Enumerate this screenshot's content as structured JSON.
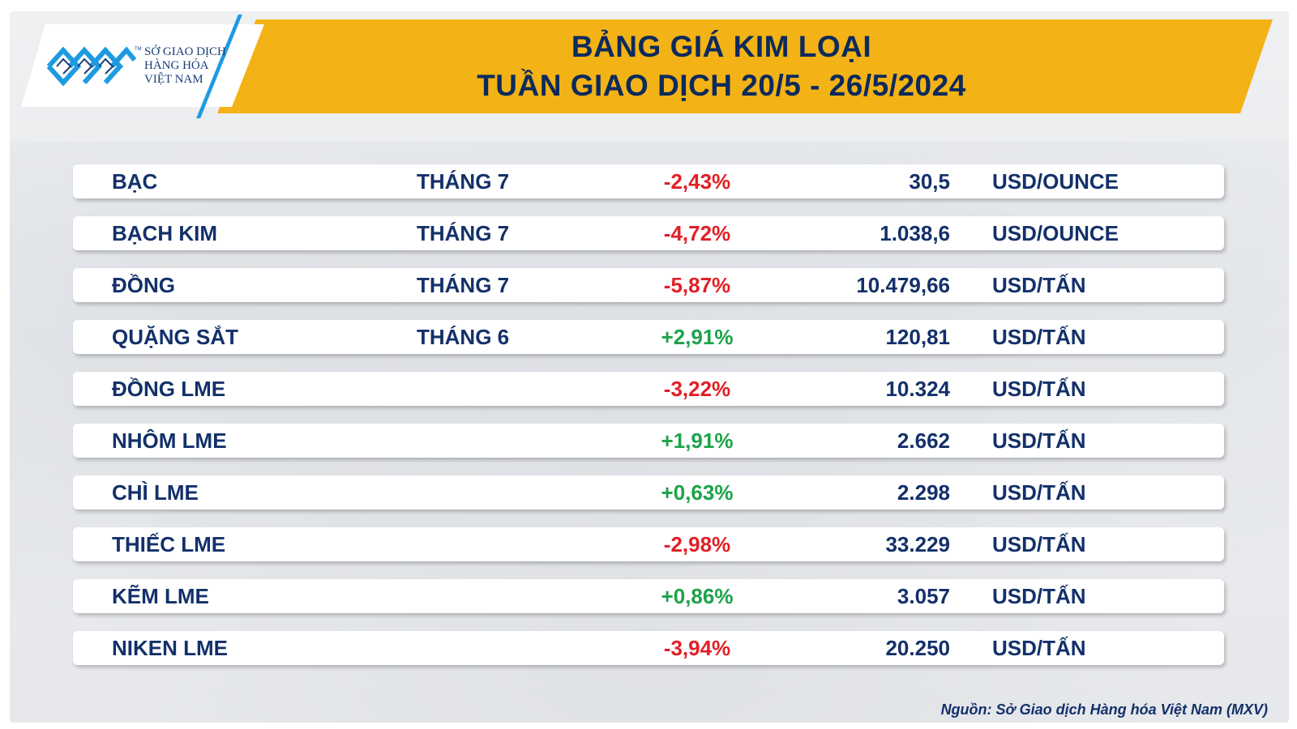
{
  "header": {
    "title_line1": "BẢNG GIÁ KIM LOẠI",
    "title_line2": "TUẦN GIAO DỊCH 20/5 - 26/5/2024"
  },
  "logo": {
    "line1": "SỞ GIAO DỊCH",
    "line2": "HÀNG HÓA",
    "line3": "VIỆT NAM",
    "tm": "TM",
    "icon": "mxv-logo-icon"
  },
  "colors": {
    "banner": "#f3b215",
    "navy_text": "#13306a",
    "negative": "#e21f26",
    "positive": "#1ca34a",
    "logo_blue": "#1e9be0"
  },
  "rows": [
    {
      "name": "BẠC",
      "month": "THÁNG 7",
      "change": "-2,43%",
      "direction": "neg",
      "price": "30,5",
      "unit": "USD/OUNCE"
    },
    {
      "name": "BẠCH KIM",
      "month": "THÁNG 7",
      "change": "-4,72%",
      "direction": "neg",
      "price": "1.038,6",
      "unit": "USD/OUNCE"
    },
    {
      "name": "ĐỒNG",
      "month": "THÁNG 7",
      "change": "-5,87%",
      "direction": "neg",
      "price": "10.479,66",
      "unit": "USD/TẤN"
    },
    {
      "name": "QUẶNG SẮT",
      "month": "THÁNG 6",
      "change": "+2,91%",
      "direction": "pos",
      "price": "120,81",
      "unit": "USD/TẤN"
    },
    {
      "name": "ĐỒNG LME",
      "month": "",
      "change": "-3,22%",
      "direction": "neg",
      "price": "10.324",
      "unit": "USD/TẤN"
    },
    {
      "name": "NHÔM LME",
      "month": "",
      "change": "+1,91%",
      "direction": "pos",
      "price": "2.662",
      "unit": "USD/TẤN"
    },
    {
      "name": "CHÌ LME",
      "month": "",
      "change": "+0,63%",
      "direction": "pos",
      "price": "2.298",
      "unit": "USD/TẤN"
    },
    {
      "name": "THIẾC LME",
      "month": "",
      "change": "-2,98%",
      "direction": "neg",
      "price": "33.229",
      "unit": "USD/TẤN"
    },
    {
      "name": "KẼM LME",
      "month": "",
      "change": "+0,86%",
      "direction": "pos",
      "price": "3.057",
      "unit": "USD/TẤN"
    },
    {
      "name": "NIKEN LME",
      "month": "",
      "change": "-3,94%",
      "direction": "neg",
      "price": "20.250",
      "unit": "USD/TẤN"
    }
  ],
  "footer": {
    "source": "Nguồn: Sở Giao dịch Hàng hóa Việt Nam (MXV)"
  }
}
